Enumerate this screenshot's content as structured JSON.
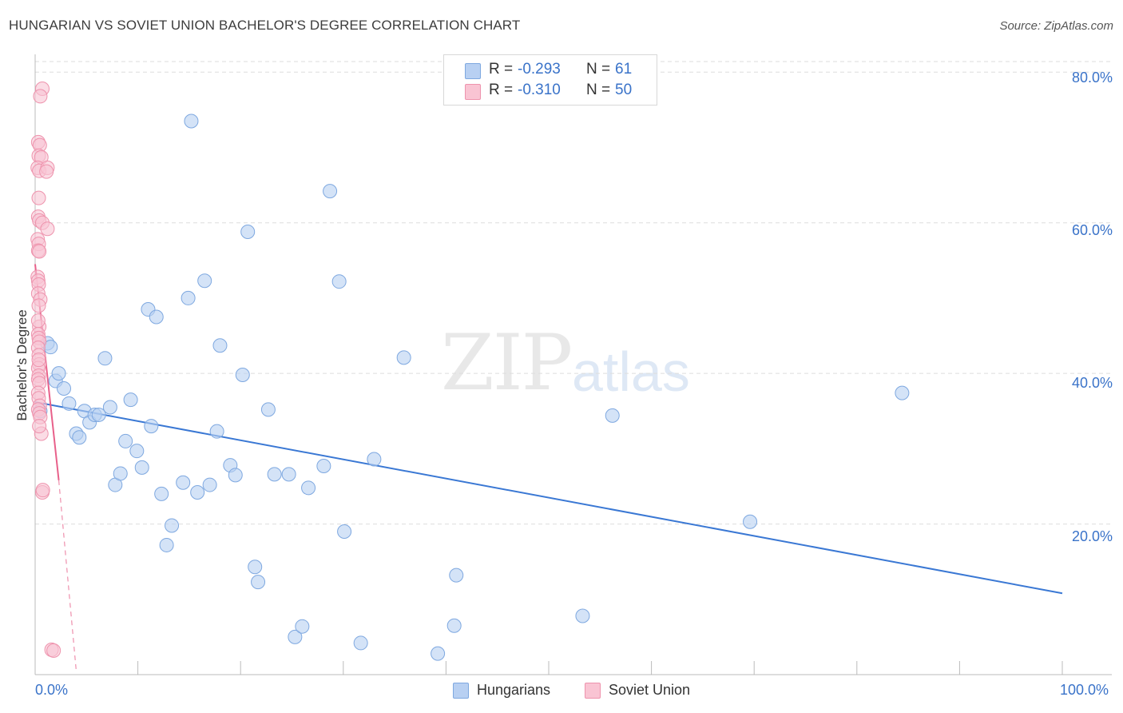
{
  "title": "HUNGARIAN VS SOVIET UNION BACHELOR'S DEGREE CORRELATION CHART",
  "source": "Source: ZipAtlas.com",
  "watermark": {
    "part1": "ZIP",
    "part2": "atlas"
  },
  "legend": {
    "r_label": "R =",
    "n_label": "N =",
    "rows": [
      {
        "r": "-0.293",
        "n": "61",
        "color": "#b8d0f2"
      },
      {
        "r": "-0.310",
        "n": "50",
        "color": "#f9c4d3"
      }
    ]
  },
  "bottom_legend": [
    {
      "label": "Hungarians",
      "color": "#b8d0f2"
    },
    {
      "label": "Soviet Union",
      "color": "#f9c4d3"
    }
  ],
  "colors": {
    "accent": "#3a73c9",
    "hungarian_line": "#3a78d4",
    "soviet_line": "#e8608a",
    "grid": "#dddddd"
  },
  "chart_data": {
    "type": "scatter",
    "title": "HUNGARIAN VS SOVIET UNION BACHELOR'S DEGREE CORRELATION CHART",
    "xlabel": "",
    "ylabel": "Bachelor's Degree",
    "xlim": [
      0,
      100
    ],
    "ylim": [
      0,
      83
    ],
    "x_tick_labels": [
      "0.0%",
      "100.0%"
    ],
    "y_ticks": [
      20,
      40,
      60,
      80
    ],
    "y_tick_labels": [
      "20.0%",
      "40.0%",
      "60.0%",
      "80.0%"
    ],
    "grid": true,
    "series": [
      {
        "name": "Hungarians",
        "color": "#b8d0f2",
        "stroke": "#7ea8e0",
        "r": -0.293,
        "n": 61,
        "trend": {
          "x": [
            0,
            100
          ],
          "y": [
            36.2,
            10.8
          ]
        },
        "points": [
          [
            0.5,
            35.0
          ],
          [
            1.2,
            44.0
          ],
          [
            1.5,
            43.5
          ],
          [
            2.0,
            39.0
          ],
          [
            2.3,
            40.0
          ],
          [
            2.8,
            38.0
          ],
          [
            3.3,
            36.0
          ],
          [
            4.0,
            32.0
          ],
          [
            4.3,
            31.5
          ],
          [
            4.8,
            35.0
          ],
          [
            5.3,
            33.5
          ],
          [
            5.8,
            34.5
          ],
          [
            6.2,
            34.5
          ],
          [
            6.8,
            42.0
          ],
          [
            7.3,
            35.5
          ],
          [
            7.8,
            25.2
          ],
          [
            8.3,
            26.7
          ],
          [
            8.8,
            31.0
          ],
          [
            9.3,
            36.5
          ],
          [
            9.9,
            29.7
          ],
          [
            10.4,
            27.5
          ],
          [
            11.0,
            48.5
          ],
          [
            11.3,
            33.0
          ],
          [
            11.8,
            47.5
          ],
          [
            12.3,
            24.0
          ],
          [
            12.8,
            17.2
          ],
          [
            13.3,
            19.8
          ],
          [
            14.4,
            25.5
          ],
          [
            14.9,
            50.0
          ],
          [
            15.2,
            73.5
          ],
          [
            15.8,
            24.2
          ],
          [
            16.5,
            52.3
          ],
          [
            17.0,
            25.2
          ],
          [
            17.7,
            32.3
          ],
          [
            18.0,
            43.7
          ],
          [
            19.0,
            27.8
          ],
          [
            19.5,
            26.5
          ],
          [
            20.2,
            39.8
          ],
          [
            20.7,
            58.8
          ],
          [
            21.4,
            14.3
          ],
          [
            21.7,
            12.3
          ],
          [
            22.7,
            35.2
          ],
          [
            23.3,
            26.6
          ],
          [
            24.7,
            26.6
          ],
          [
            25.3,
            5.0
          ],
          [
            26.0,
            6.4
          ],
          [
            26.6,
            24.8
          ],
          [
            28.1,
            27.7
          ],
          [
            28.7,
            64.2
          ],
          [
            29.6,
            52.2
          ],
          [
            30.1,
            19.0
          ],
          [
            31.7,
            4.2
          ],
          [
            33.0,
            28.6
          ],
          [
            35.9,
            42.1
          ],
          [
            39.2,
            2.8
          ],
          [
            40.8,
            6.5
          ],
          [
            41.0,
            13.2
          ],
          [
            53.3,
            7.8
          ],
          [
            56.2,
            34.4
          ],
          [
            69.6,
            20.3
          ],
          [
            84.4,
            37.4
          ]
        ]
      },
      {
        "name": "Soviet Union",
        "color": "#f9c4d3",
        "stroke": "#ee93ad",
        "r": -0.31,
        "n": 50,
        "trend": {
          "x": [
            0,
            2.3
          ],
          "y": [
            54.5,
            25.8
          ]
        },
        "trend_dashed": {
          "x": [
            2.3,
            4.0
          ],
          "y": [
            25.8,
            0.5
          ]
        },
        "points": [
          [
            0.7,
            77.8
          ],
          [
            0.5,
            76.8
          ],
          [
            0.3,
            70.7
          ],
          [
            0.45,
            70.3
          ],
          [
            0.35,
            68.9
          ],
          [
            0.6,
            68.7
          ],
          [
            0.25,
            67.3
          ],
          [
            0.4,
            66.9
          ],
          [
            1.2,
            67.3
          ],
          [
            1.1,
            66.8
          ],
          [
            0.35,
            63.3
          ],
          [
            0.3,
            60.8
          ],
          [
            0.4,
            60.3
          ],
          [
            0.7,
            60.0
          ],
          [
            1.2,
            59.2
          ],
          [
            0.25,
            57.8
          ],
          [
            0.35,
            57.2
          ],
          [
            0.3,
            56.3
          ],
          [
            0.4,
            56.2
          ],
          [
            0.25,
            52.8
          ],
          [
            0.3,
            52.3
          ],
          [
            0.35,
            51.8
          ],
          [
            0.3,
            50.6
          ],
          [
            0.5,
            49.8
          ],
          [
            0.35,
            49.0
          ],
          [
            0.4,
            46.2
          ],
          [
            0.3,
            45.2
          ],
          [
            0.35,
            44.7
          ],
          [
            0.4,
            44.2
          ],
          [
            0.3,
            43.4
          ],
          [
            0.35,
            42.4
          ],
          [
            0.4,
            41.2
          ],
          [
            0.3,
            40.7
          ],
          [
            0.35,
            39.7
          ],
          [
            0.3,
            39.2
          ],
          [
            0.4,
            38.7
          ],
          [
            0.3,
            37.4
          ],
          [
            0.35,
            36.7
          ],
          [
            0.45,
            35.7
          ],
          [
            0.3,
            35.2
          ],
          [
            0.4,
            34.7
          ],
          [
            0.5,
            34.2
          ],
          [
            0.6,
            32.0
          ],
          [
            0.7,
            24.2
          ],
          [
            0.75,
            24.5
          ],
          [
            1.6,
            3.3
          ],
          [
            1.8,
            3.2
          ],
          [
            0.4,
            33.0
          ],
          [
            0.35,
            41.8
          ],
          [
            0.3,
            47.0
          ]
        ]
      }
    ]
  }
}
